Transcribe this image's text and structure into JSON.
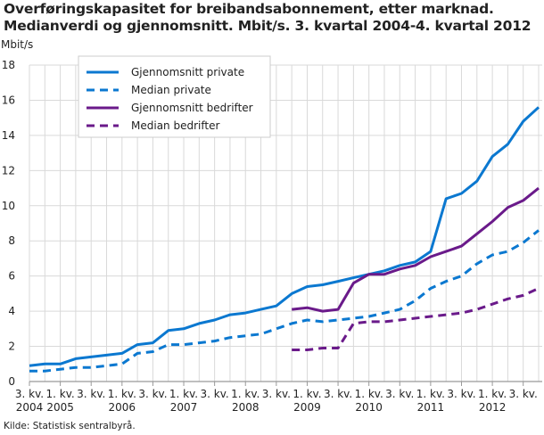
{
  "chart_data": {
    "type": "line",
    "title": "Overføringskapasitet for breibandsabonnement, etter marknad. Medianverdi og gjennomsnitt. Mbit/s. 3. kvartal 2004-4. kvartal 2012",
    "ylabel": "Mbit/s",
    "xlabel": "",
    "ylim": [
      0,
      18
    ],
    "yticks": [
      0,
      2,
      4,
      6,
      8,
      10,
      12,
      14,
      16,
      18
    ],
    "grid": true,
    "legend": "top-left",
    "x": [
      "2004Q3",
      "2004Q4",
      "2005Q1",
      "2005Q2",
      "2005Q3",
      "2005Q4",
      "2006Q1",
      "2006Q2",
      "2006Q3",
      "2006Q4",
      "2007Q1",
      "2007Q2",
      "2007Q3",
      "2007Q4",
      "2008Q1",
      "2008Q2",
      "2008Q3",
      "2008Q4",
      "2009Q1",
      "2009Q2",
      "2009Q3",
      "2009Q4",
      "2010Q1",
      "2010Q2",
      "2010Q3",
      "2010Q4",
      "2011Q1",
      "2011Q2",
      "2011Q3",
      "2011Q4",
      "2012Q1",
      "2012Q2",
      "2012Q3",
      "2012Q4"
    ],
    "xtick_labels": [
      {
        "q": "3. kv.",
        "y": "2004"
      },
      {
        "q": "1. kv.",
        "y": "2005"
      },
      {
        "q": "3. kv.",
        "y": ""
      },
      {
        "q": "1. kv.",
        "y": "2006"
      },
      {
        "q": "3. kv.",
        "y": ""
      },
      {
        "q": "1. kv.",
        "y": "2007"
      },
      {
        "q": "3. kv.",
        "y": ""
      },
      {
        "q": "1. kv.",
        "y": "2008"
      },
      {
        "q": "3. kv.",
        "y": ""
      },
      {
        "q": "1. kv.",
        "y": "2009"
      },
      {
        "q": "3. kv.",
        "y": ""
      },
      {
        "q": "1. kv.",
        "y": "2010"
      },
      {
        "q": "3. kv.",
        "y": ""
      },
      {
        "q": "1. kv.",
        "y": "2011"
      },
      {
        "q": "3. kv.",
        "y": ""
      },
      {
        "q": "1. kv.",
        "y": "2012"
      },
      {
        "q": "3. kv.",
        "y": ""
      }
    ],
    "series": [
      {
        "name": "Gjennomsnitt private",
        "color": "#0b78d0",
        "dash": false,
        "values": [
          0.9,
          1.0,
          1.0,
          1.3,
          1.4,
          1.5,
          1.6,
          2.1,
          2.2,
          2.9,
          3.0,
          3.3,
          3.5,
          3.8,
          3.9,
          4.1,
          4.3,
          5.0,
          5.4,
          5.5,
          5.7,
          5.9,
          6.1,
          6.3,
          6.6,
          6.8,
          7.4,
          10.4,
          10.7,
          11.4,
          12.8,
          13.5,
          14.8,
          15.6
        ]
      },
      {
        "name": "Median private",
        "color": "#0b78d0",
        "dash": true,
        "values": [
          0.6,
          0.6,
          0.7,
          0.8,
          0.8,
          0.9,
          1.0,
          1.6,
          1.7,
          2.1,
          2.1,
          2.2,
          2.3,
          2.5,
          2.6,
          2.7,
          3.0,
          3.3,
          3.5,
          3.4,
          3.5,
          3.6,
          3.7,
          3.9,
          4.1,
          4.6,
          5.3,
          5.7,
          6.0,
          6.7,
          7.2,
          7.4,
          7.9,
          8.6
        ]
      },
      {
        "name": "Gjennomsnitt bedrifter",
        "color": "#6a1a8a",
        "dash": false,
        "values": [
          null,
          null,
          null,
          null,
          null,
          null,
          null,
          null,
          null,
          null,
          null,
          null,
          null,
          null,
          null,
          null,
          null,
          4.1,
          4.2,
          4.0,
          4.1,
          5.6,
          6.1,
          6.1,
          6.4,
          6.6,
          7.1,
          7.4,
          7.7,
          8.4,
          9.1,
          9.9,
          10.3,
          11.0
        ]
      },
      {
        "name": "Median bedrifter",
        "color": "#6a1a8a",
        "dash": true,
        "values": [
          null,
          null,
          null,
          null,
          null,
          null,
          null,
          null,
          null,
          null,
          null,
          null,
          null,
          null,
          null,
          null,
          null,
          1.8,
          1.8,
          1.9,
          1.9,
          3.3,
          3.4,
          3.4,
          3.5,
          3.6,
          3.7,
          3.8,
          3.9,
          4.1,
          4.4,
          4.7,
          4.9,
          5.3
        ]
      }
    ]
  },
  "source": "Kilde: Statistisk sentralbyrå."
}
